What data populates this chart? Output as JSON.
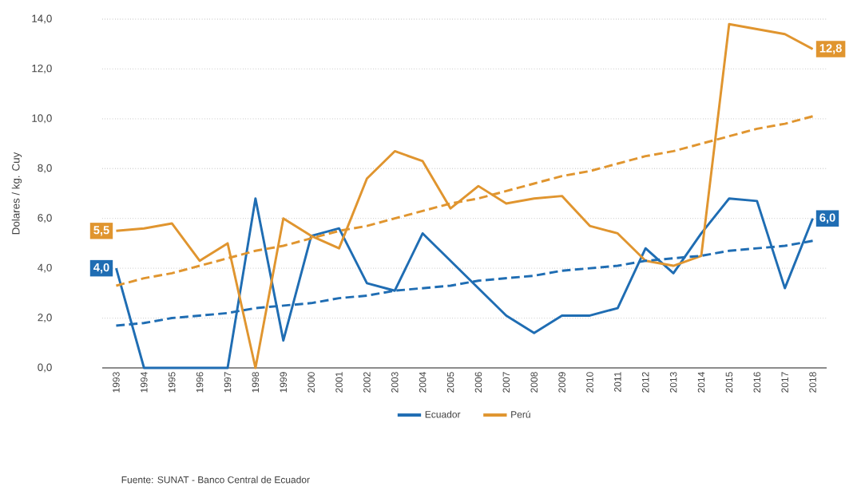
{
  "chart_data": {
    "type": "line",
    "ylabel": "Dolares / kg. Cuy",
    "x": [
      1993,
      1994,
      1995,
      1996,
      1997,
      1998,
      1999,
      2000,
      2001,
      2002,
      2003,
      2004,
      2005,
      2006,
      2007,
      2008,
      2009,
      2010,
      2011,
      2012,
      2013,
      2014,
      2015,
      2016,
      2017,
      2018
    ],
    "xlim": [
      1992.5,
      2018.5
    ],
    "xticks": [
      1993,
      1994,
      1995,
      1996,
      1997,
      1998,
      1999,
      2000,
      2001,
      2002,
      2003,
      2004,
      2005,
      2006,
      2007,
      2008,
      2009,
      2010,
      2011,
      2012,
      2013,
      2014,
      2015,
      2016,
      2017,
      2018
    ],
    "ylim": [
      0,
      14
    ],
    "yticks": [
      {
        "value": 0,
        "label": "0,0"
      },
      {
        "value": 2,
        "label": "2,0"
      },
      {
        "value": 4,
        "label": "4,0"
      },
      {
        "value": 6,
        "label": "6,0"
      },
      {
        "value": 8,
        "label": "8,0"
      },
      {
        "value": 10,
        "label": "10,0"
      },
      {
        "value": 12,
        "label": "12,0"
      },
      {
        "value": 14,
        "label": "14,0"
      }
    ],
    "grid": "y",
    "legend": "bottom",
    "line_style": "solid",
    "series": [
      {
        "name": "Ecuador",
        "color": "#1f6db3",
        "values": [
          4.0,
          0,
          0,
          0,
          0,
          6.8,
          1.1,
          5.3,
          5.6,
          3.4,
          3.1,
          5.4,
          4.3,
          3.2,
          2.1,
          1.4,
          2.1,
          2.1,
          2.4,
          4.8,
          3.8,
          5.4,
          6.8,
          6.7,
          3.2,
          6.0
        ],
        "value_labels": [
          "4,0",
          null,
          null,
          null,
          null,
          null,
          null,
          null,
          null,
          null,
          null,
          null,
          null,
          null,
          null,
          null,
          null,
          null,
          null,
          null,
          null,
          null,
          null,
          null,
          null,
          "6,0"
        ]
      },
      {
        "name": "Perú",
        "color": "#e0952f",
        "values": [
          5.5,
          5.6,
          5.8,
          4.3,
          5.0,
          0.0,
          6.0,
          5.3,
          4.8,
          7.6,
          8.7,
          8.3,
          6.4,
          7.3,
          6.6,
          6.8,
          6.9,
          5.7,
          5.4,
          4.3,
          4.1,
          4.5,
          13.8,
          13.6,
          13.4,
          12.8
        ],
        "value_labels": [
          "5,5",
          null,
          null,
          null,
          null,
          null,
          null,
          null,
          null,
          null,
          null,
          null,
          null,
          null,
          null,
          null,
          null,
          null,
          null,
          null,
          null,
          null,
          null,
          null,
          null,
          "12,8"
        ]
      },
      {
        "type": "line",
        "color": "#1f6db3",
        "line_style": "dashed",
        "values": [
          1.7,
          1.8,
          2.0,
          2.1,
          2.2,
          2.4,
          2.5,
          2.6,
          2.8,
          2.9,
          3.1,
          3.2,
          3.3,
          3.5,
          3.6,
          3.7,
          3.9,
          4.0,
          4.1,
          4.3,
          4.4,
          4.5,
          4.7,
          4.8,
          4.9,
          5.1
        ]
      },
      {
        "type": "line",
        "color": "#e0952f",
        "line_style": "dashed",
        "values": [
          3.3,
          3.6,
          3.8,
          4.1,
          4.4,
          4.7,
          4.9,
          5.2,
          5.5,
          5.7,
          6.0,
          6.3,
          6.6,
          6.8,
          7.1,
          7.4,
          7.7,
          7.9,
          8.2,
          8.5,
          8.7,
          9.0,
          9.3,
          9.6,
          9.8,
          10.1
        ]
      }
    ],
    "annotations": [
      "Fuente: SUNAT - Banco Central de Ecuador"
    ]
  }
}
